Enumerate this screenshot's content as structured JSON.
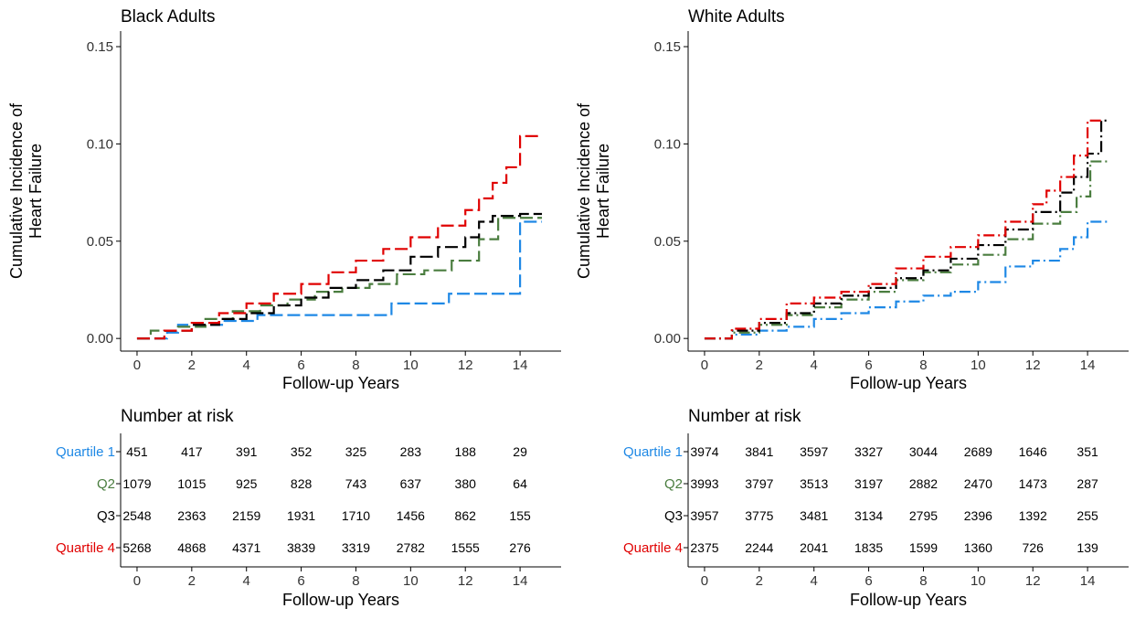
{
  "colors": {
    "quartile1": "#1E88E5",
    "q2": "#4A7D3F",
    "q3": "#000000",
    "quartile4": "#E00000"
  },
  "risk_table": {
    "title": "Number at risk",
    "row_labels": [
      "Quartile 1",
      "Q2",
      "Q3",
      "Quartile 4"
    ],
    "xlabel": "Follow-up Years",
    "time_points": [
      0,
      2,
      4,
      6,
      8,
      10,
      12,
      14
    ]
  },
  "chart_data": [
    {
      "type": "line",
      "title": "Black Adults",
      "xlabel": "Follow-up Years",
      "ylabel": "Cumulative Incidence of Heart Failure",
      "ylabel_lines": [
        "Cumulative Incidence of",
        "Heart Failure"
      ],
      "xlim": [
        -0.6,
        15.5
      ],
      "ylim": [
        -0.0065,
        0.158
      ],
      "xticks": [
        0,
        2,
        4,
        6,
        8,
        10,
        12,
        14
      ],
      "yticks": [
        0.0,
        0.05,
        0.1,
        0.15
      ],
      "ytick_labels": [
        "0.00",
        "0.05",
        "0.10",
        "0.15"
      ],
      "step": true,
      "line_style": "dashed",
      "series": [
        {
          "name": "Quartile 1",
          "color_key": "quartile1",
          "x": [
            0,
            1.1,
            1.5,
            3.2,
            4.4,
            6.0,
            9.3,
            11.4,
            14.0,
            14.2,
            14.8
          ],
          "y": [
            0.0,
            0.003,
            0.007,
            0.009,
            0.012,
            0.012,
            0.018,
            0.023,
            0.06,
            0.06,
            0.06
          ]
        },
        {
          "name": "Q2",
          "color_key": "q2",
          "x": [
            0,
            0.5,
            1.5,
            2.5,
            3.5,
            4.5,
            5.5,
            6.5,
            7.5,
            8.5,
            9.5,
            10.5,
            11.5,
            12.5,
            13.2,
            14.2,
            14.8
          ],
          "y": [
            0.0,
            0.004,
            0.006,
            0.01,
            0.014,
            0.017,
            0.02,
            0.024,
            0.026,
            0.028,
            0.033,
            0.035,
            0.04,
            0.051,
            0.062,
            0.062,
            0.062
          ]
        },
        {
          "name": "Q3",
          "color_key": "q3",
          "x": [
            0,
            1,
            2,
            3,
            4,
            5,
            6,
            7,
            8,
            9,
            10,
            11,
            12,
            12.5,
            13,
            14,
            14.8
          ],
          "y": [
            0.0,
            0.004,
            0.007,
            0.01,
            0.013,
            0.017,
            0.021,
            0.026,
            0.03,
            0.035,
            0.042,
            0.047,
            0.052,
            0.06,
            0.063,
            0.064,
            0.064
          ]
        },
        {
          "name": "Quartile 4",
          "color_key": "quartile4",
          "x": [
            0,
            1,
            2,
            3,
            4,
            5,
            6,
            7,
            8,
            9,
            10,
            11,
            12,
            12.5,
            13,
            13.5,
            14,
            14.8
          ],
          "y": [
            0.0,
            0.004,
            0.008,
            0.013,
            0.018,
            0.023,
            0.028,
            0.034,
            0.04,
            0.046,
            0.052,
            0.058,
            0.066,
            0.072,
            0.08,
            0.088,
            0.104,
            0.104
          ]
        }
      ],
      "risk_table": [
        [
          451,
          417,
          391,
          352,
          325,
          283,
          188,
          29
        ],
        [
          1079,
          1015,
          925,
          828,
          743,
          637,
          380,
          64
        ],
        [
          2548,
          2363,
          2159,
          1931,
          1710,
          1456,
          862,
          155
        ],
        [
          5268,
          4868,
          4371,
          3839,
          3319,
          2782,
          1555,
          276
        ]
      ]
    },
    {
      "type": "line",
      "title": "White Adults",
      "xlabel": "Follow-up Years",
      "ylabel": "Cumulative Incidence of Heart Failure",
      "ylabel_lines": [
        "Cumulative Incidence of",
        "Heart Failure"
      ],
      "xlim": [
        -0.6,
        15.5
      ],
      "ylim": [
        -0.0065,
        0.158
      ],
      "xticks": [
        0,
        2,
        4,
        6,
        8,
        10,
        12,
        14
      ],
      "yticks": [
        0.0,
        0.05,
        0.1,
        0.15
      ],
      "ytick_labels": [
        "0.00",
        "0.05",
        "0.10",
        "0.15"
      ],
      "step": true,
      "line_style": "dash-dot",
      "series": [
        {
          "name": "Quartile 1",
          "color_key": "quartile1",
          "x": [
            0,
            1,
            2,
            3,
            4,
            5,
            6,
            7,
            8,
            9,
            10,
            11,
            12,
            13,
            13.5,
            14,
            14.8
          ],
          "y": [
            0.0,
            0.002,
            0.004,
            0.006,
            0.01,
            0.013,
            0.016,
            0.019,
            0.022,
            0.024,
            0.029,
            0.037,
            0.04,
            0.046,
            0.052,
            0.06,
            0.06
          ]
        },
        {
          "name": "Q2",
          "color_key": "q2",
          "x": [
            0,
            1,
            2,
            3,
            4,
            5,
            6,
            7,
            8,
            9,
            10,
            11,
            12,
            13,
            13.6,
            14.1,
            14.8
          ],
          "y": [
            0.0,
            0.003,
            0.007,
            0.012,
            0.016,
            0.02,
            0.024,
            0.03,
            0.034,
            0.038,
            0.043,
            0.051,
            0.059,
            0.065,
            0.073,
            0.091,
            0.091
          ]
        },
        {
          "name": "Q3",
          "color_key": "q3",
          "x": [
            0,
            1,
            2,
            3,
            4,
            5,
            6,
            7,
            8,
            9,
            10,
            11,
            12,
            13,
            13.5,
            14,
            14.5,
            14.8
          ],
          "y": [
            0.0,
            0.004,
            0.008,
            0.013,
            0.018,
            0.022,
            0.026,
            0.031,
            0.035,
            0.041,
            0.048,
            0.056,
            0.065,
            0.075,
            0.083,
            0.095,
            0.112,
            0.112
          ]
        },
        {
          "name": "Quartile 4",
          "color_key": "quartile4",
          "x": [
            0,
            1,
            2,
            3,
            4,
            5,
            6,
            7,
            8,
            9,
            10,
            11,
            12,
            12.5,
            13,
            13.5,
            14,
            14.5
          ],
          "y": [
            0.0,
            0.005,
            0.01,
            0.018,
            0.021,
            0.024,
            0.028,
            0.036,
            0.042,
            0.047,
            0.053,
            0.06,
            0.069,
            0.076,
            0.083,
            0.094,
            0.112,
            0.112
          ]
        }
      ],
      "risk_table": [
        [
          3974,
          3841,
          3597,
          3327,
          3044,
          2689,
          1646,
          351
        ],
        [
          3993,
          3797,
          3513,
          3197,
          2882,
          2470,
          1473,
          287
        ],
        [
          3957,
          3775,
          3481,
          3134,
          2795,
          2396,
          1392,
          255
        ],
        [
          2375,
          2244,
          2041,
          1835,
          1599,
          1360,
          726,
          139
        ]
      ]
    }
  ]
}
